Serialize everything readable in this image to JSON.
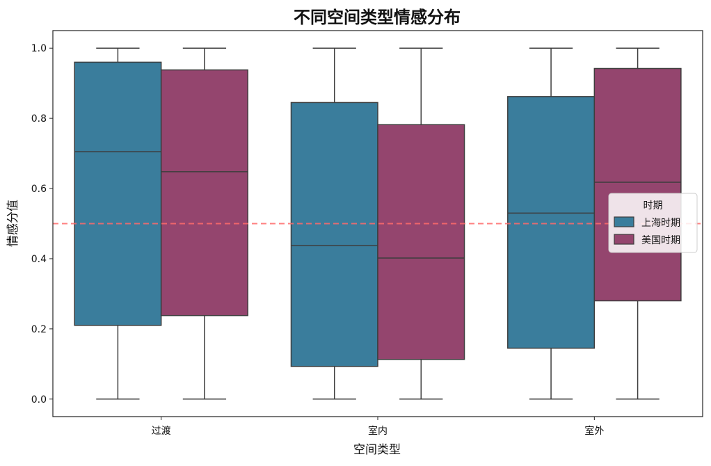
{
  "chart_data": {
    "type": "box",
    "title": "不同空间类型情感分布",
    "xlabel": "空间类型",
    "ylabel": "情感分值",
    "ylim": [
      -0.05,
      1.05
    ],
    "yticks": [
      "0.0",
      "0.2",
      "0.4",
      "0.6",
      "0.8",
      "1.0"
    ],
    "ytick_values": [
      0.0,
      0.2,
      0.4,
      0.6,
      0.8,
      1.0
    ],
    "categories": [
      "过渡",
      "室内",
      "室外"
    ],
    "reference_line": {
      "y": 0.5,
      "color": "#ff6b6b",
      "style": "dashed"
    },
    "legend": {
      "title": "时期",
      "position": "center-right"
    },
    "series": [
      {
        "name": "上海时期",
        "color": "#3a7d9c",
        "boxes": [
          {
            "min": 0.0,
            "q1": 0.21,
            "median": 0.705,
            "q3": 0.96,
            "max": 1.0
          },
          {
            "min": 0.0,
            "q1": 0.093,
            "median": 0.437,
            "q3": 0.845,
            "max": 1.0
          },
          {
            "min": 0.0,
            "q1": 0.145,
            "median": 0.53,
            "q3": 0.862,
            "max": 1.0
          }
        ]
      },
      {
        "name": "美国时期",
        "color": "#94456e",
        "boxes": [
          {
            "min": 0.0,
            "q1": 0.238,
            "median": 0.648,
            "q3": 0.938,
            "max": 1.0
          },
          {
            "min": 0.0,
            "q1": 0.113,
            "median": 0.402,
            "q3": 0.782,
            "max": 1.0
          },
          {
            "min": 0.0,
            "q1": 0.28,
            "median": 0.618,
            "q3": 0.942,
            "max": 1.0
          }
        ]
      }
    ]
  }
}
